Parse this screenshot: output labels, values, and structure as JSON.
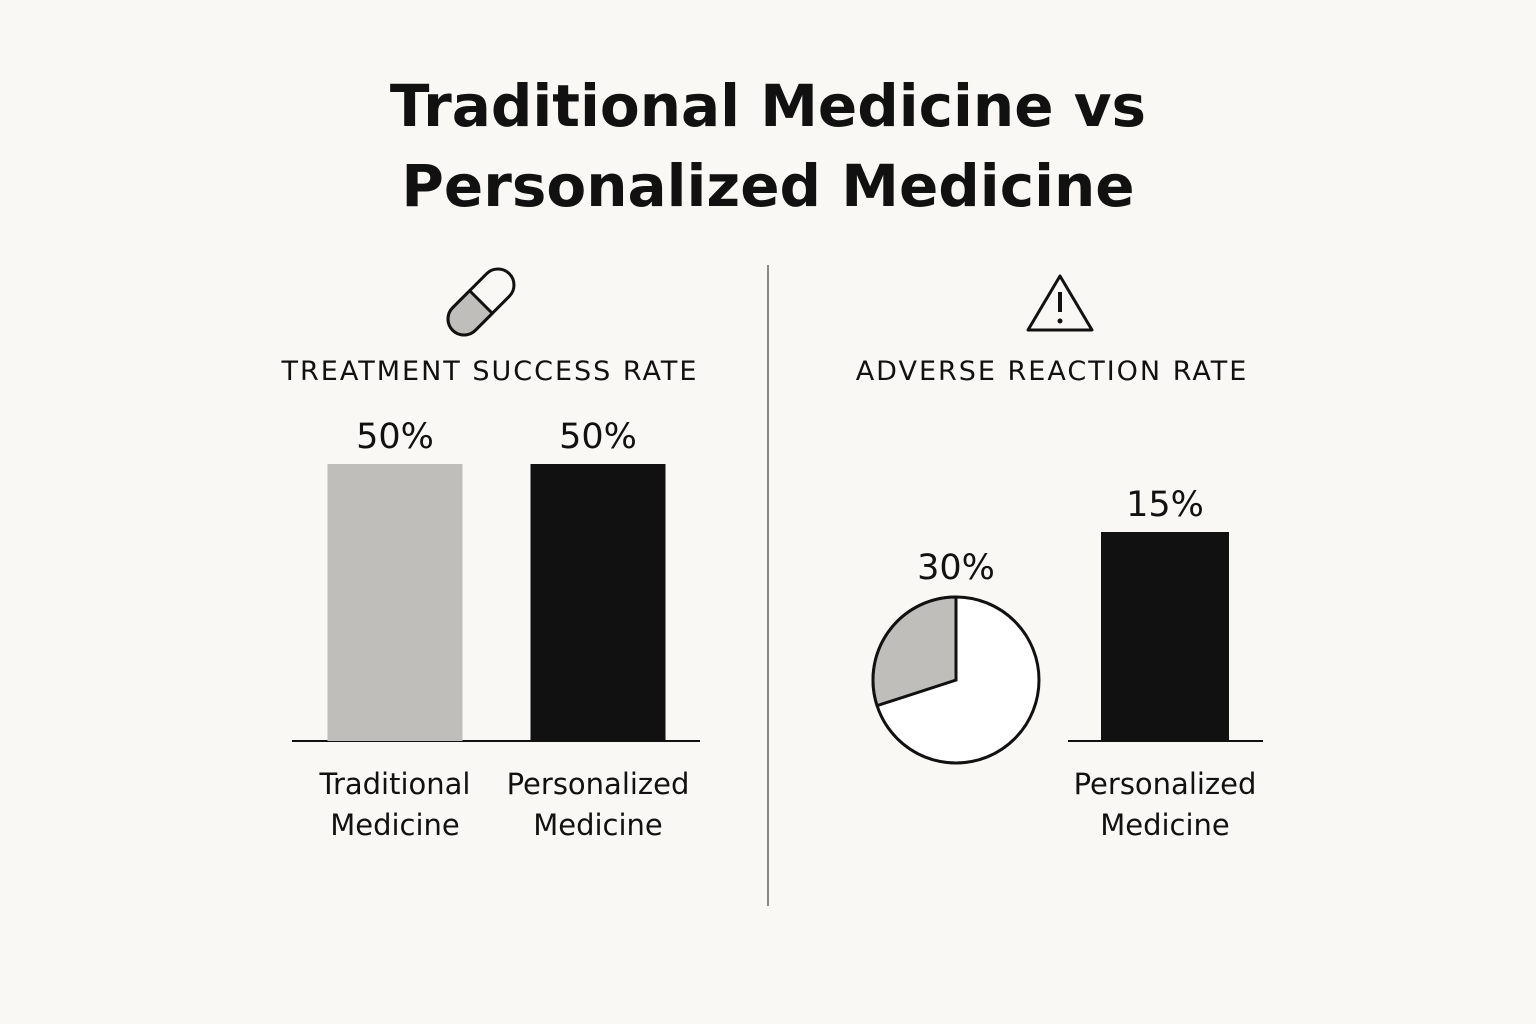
{
  "title": "Traditional Medicine vs Personalized Medicine",
  "chart_data": [
    {
      "type": "bar",
      "title": "TREATMENT SUCCESS RATE",
      "categories": [
        "Traditional Medicine",
        "Personalized Medicine"
      ],
      "values": [
        50,
        50
      ],
      "value_labels": [
        "50%",
        "50%"
      ],
      "colors": [
        "#bfbebb",
        "#111111"
      ]
    },
    {
      "type": "combo",
      "title": "ADVERSE REACTION RATE",
      "categories": [
        null,
        "Personalized Medicine"
      ],
      "values": [
        30,
        15
      ],
      "value_labels": [
        "30%",
        "15%"
      ],
      "marks": [
        "pie",
        "bar"
      ],
      "colors": [
        "#bfbebb",
        "#111111"
      ]
    }
  ]
}
